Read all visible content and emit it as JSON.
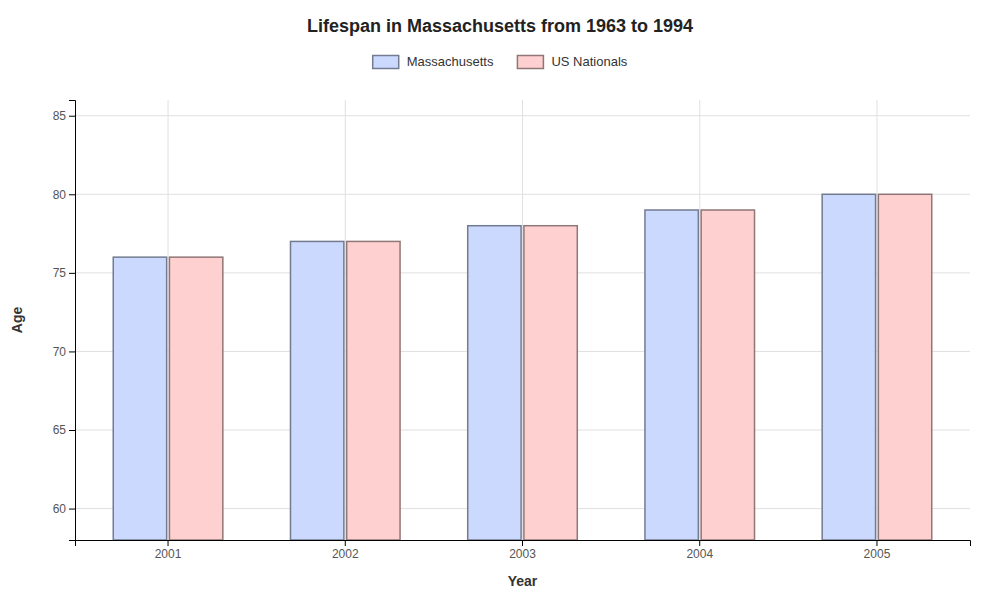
{
  "chart_data": {
    "type": "bar",
    "title": "Lifespan in Massachusetts from 1963 to 1994",
    "xlabel": "Year",
    "ylabel": "Age",
    "categories": [
      "2001",
      "2002",
      "2003",
      "2004",
      "2005"
    ],
    "series": [
      {
        "name": "Massachusetts",
        "color": "#ccd9ff",
        "values": [
          76,
          77,
          78,
          79,
          80
        ]
      },
      {
        "name": "US Nationals",
        "color": "#ffd0d0",
        "values": [
          76,
          77,
          78,
          79,
          80
        ]
      }
    ],
    "ylim": [
      58,
      86
    ],
    "yticks": [
      60,
      65,
      70,
      75,
      80,
      85
    ],
    "grid": true,
    "legend": "top"
  }
}
